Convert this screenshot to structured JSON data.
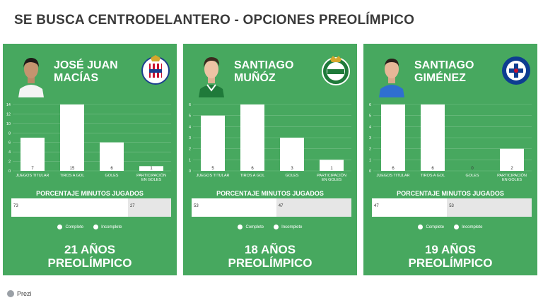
{
  "title": "SE BUSCA CENTRODELANTERO - OPCIONES PREOLÍMPICO",
  "footer": {
    "brand": "Prezi"
  },
  "players": [
    {
      "name": "JOSÉ JUAN MACÍAS",
      "age_label": "21 AÑOS",
      "status_label": "PREOLÍMPICO",
      "club_icon": "chivas-crest-icon",
      "pct_title": "PORCENTAJE MINUTOS JUGADOS",
      "legend_complete": "Complete",
      "legend_incomplete": "Incomplete",
      "minutes": {
        "complete": 73,
        "incomplete": 27
      }
    },
    {
      "name": "SANTIAGO MUÑÓZ",
      "age_label": "18 AÑOS",
      "status_label": "PREOLÍMPICO",
      "club_icon": "santos-laguna-crest-icon",
      "pct_title": "PORCENTAJE MINUTOS JUGADOS",
      "legend_complete": "Complete",
      "legend_incomplete": "Incomplete",
      "minutes": {
        "complete": 53,
        "incomplete": 47
      }
    },
    {
      "name": "SANTIAGO GIMÉNEZ",
      "age_label": "19 AÑOS",
      "status_label": "PREOLÍMPICO",
      "club_icon": "cruz-azul-crest-icon",
      "pct_title": "PORCENTAJE MINUTOS JUGADOS",
      "legend_complete": "Complete",
      "legend_incomplete": "Incomplete",
      "minutes": {
        "complete": 47,
        "incomplete": 53
      }
    }
  ],
  "colors": {
    "panel": "#47a85f",
    "bar": "#ffffff",
    "incomplete": "#e6e6e6",
    "title": "#3a3a3a"
  },
  "chart_data": [
    {
      "type": "bar",
      "categories": [
        "JUEGOS TITULAR",
        "TIROS A GOL",
        "GOLES",
        "PARTICIPACIÓN EN GOLES"
      ],
      "values": [
        7,
        15,
        6,
        1
      ],
      "ylim": [
        0,
        14
      ],
      "yticks": [
        0,
        2,
        4,
        6,
        8,
        10,
        12,
        14
      ],
      "grid": true
    },
    {
      "type": "bar",
      "categories": [
        "JUEGOS TITULAR",
        "TIROS A GOL",
        "GOLES",
        "PARTICIPACIÓN EN GOLES"
      ],
      "values": [
        5,
        6,
        3,
        1
      ],
      "ylim": [
        0,
        6
      ],
      "yticks": [
        0,
        1,
        2,
        3,
        4,
        5,
        6
      ],
      "grid": true
    },
    {
      "type": "bar",
      "categories": [
        "JUEGOS TITULAR",
        "TIROS A GOL",
        "GOLES",
        "PARTICIPACIÓN EN GOLES"
      ],
      "values": [
        6,
        6,
        0,
        2
      ],
      "ylim": [
        0,
        6
      ],
      "yticks": [
        0,
        1,
        2,
        3,
        4,
        5,
        6
      ],
      "grid": true
    }
  ]
}
